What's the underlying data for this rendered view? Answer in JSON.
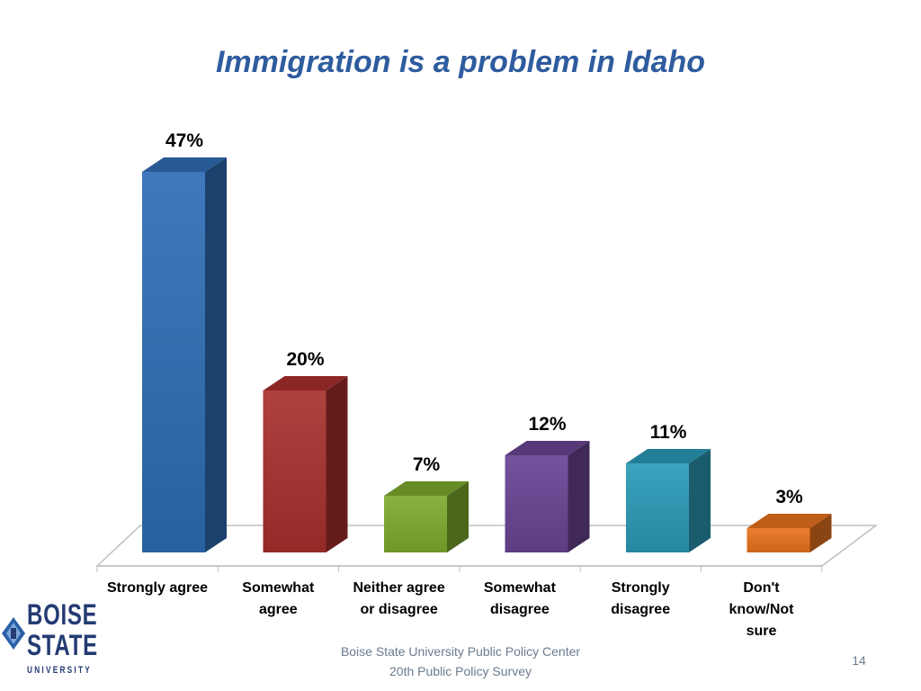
{
  "slide": {
    "title": "Immigration is a problem in Idaho",
    "footer_line1": "Boise State University  Public Policy Center",
    "footer_line2": "20th Public Policy Survey",
    "page_number": "14"
  },
  "logo": {
    "line1": "BOISE",
    "line2": "STATE",
    "line3": "UNIVERSITY",
    "color": "#243b73"
  },
  "chart_data": {
    "type": "bar",
    "title": "Immigration is a problem in Idaho",
    "categories": [
      "Strongly agree",
      "Somewhat\nagree",
      "Neither agree\nor disagree",
      "Somewhat\ndisagree",
      "Strongly\ndisagree",
      "Don't\nknow/Not\nsure"
    ],
    "values": [
      47,
      20,
      7,
      12,
      11,
      3
    ],
    "value_labels": [
      "47%",
      "20%",
      "7%",
      "12%",
      "11%",
      "3%"
    ],
    "unit": "%",
    "colors": [
      "#2F6DB5",
      "#A8302E",
      "#7EAB2E",
      "#6A4494",
      "#2B9AB8",
      "#E8731E"
    ],
    "grid": false,
    "legend": "none",
    "style": "3d-column"
  }
}
